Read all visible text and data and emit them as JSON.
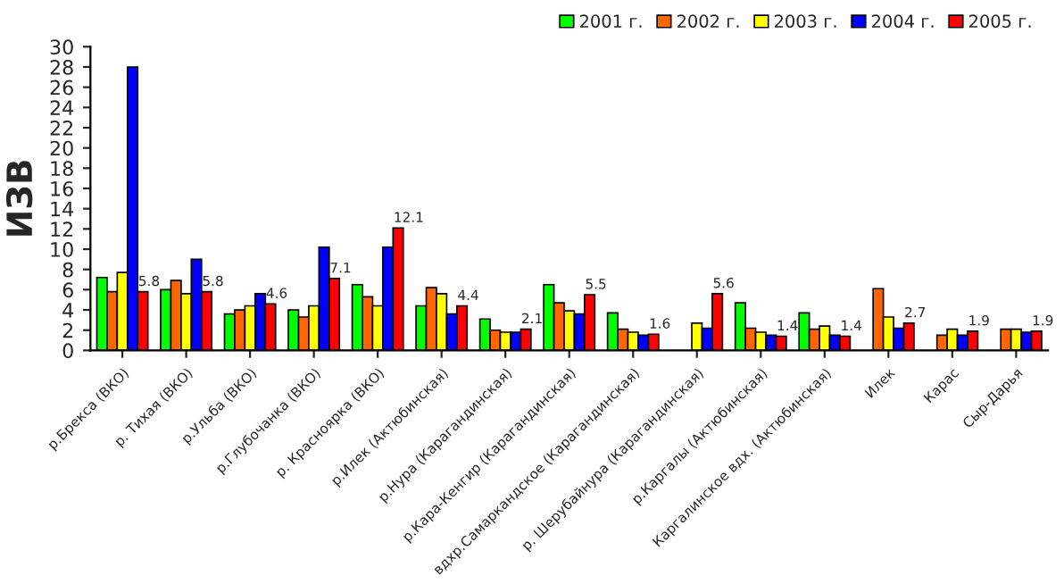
{
  "chart_data": {
    "type": "bar",
    "ylabel": "ИЗВ",
    "categories": [
      "р.Брекса (ВКО)",
      "р. Тихая (ВКО)",
      "р.Ульба (ВКО)",
      "р.Глубочанка (ВКО)",
      "р. Красноярка (ВКО)",
      "р.Илек (Актюбинская)",
      "р.Нура (Карагандинская)",
      "р.Кара-Кенгир (Карагандинская)",
      "вдхр.Самаркандское (Карагандинская)",
      "р. Шерубайнура (Карагандинская)",
      "р.Каргалы (Актюбинская)",
      "Каргалинское вдх. (Актюбинская)",
      "Илек",
      "Карас",
      "Сыр-Дарья"
    ],
    "series": [
      {
        "name": "2001 г.",
        "color": "#00ff00",
        "values": [
          7.2,
          6.0,
          3.6,
          4.0,
          6.5,
          4.4,
          3.1,
          6.5,
          3.7,
          null,
          4.7,
          3.7,
          null,
          null,
          null
        ]
      },
      {
        "name": "2002 г.",
        "color": "#ff6600",
        "values": [
          5.8,
          6.9,
          4.0,
          3.3,
          5.3,
          6.2,
          2.0,
          4.7,
          2.1,
          null,
          2.2,
          2.1,
          6.1,
          1.5,
          2.1
        ]
      },
      {
        "name": "2003 г.",
        "color": "#ffff00",
        "values": [
          7.7,
          5.6,
          4.4,
          4.4,
          4.4,
          5.6,
          1.8,
          3.9,
          1.8,
          2.7,
          1.8,
          2.4,
          3.3,
          2.1,
          2.1
        ]
      },
      {
        "name": "2004 г.",
        "color": "#0000ff",
        "values": [
          28.0,
          9.0,
          5.6,
          10.2,
          10.2,
          3.6,
          1.8,
          3.6,
          1.5,
          2.2,
          1.5,
          1.5,
          2.2,
          1.5,
          1.8
        ]
      },
      {
        "name": "2005 г.",
        "color": "#ff0000",
        "values": [
          5.8,
          5.8,
          4.6,
          7.1,
          12.1,
          4.4,
          2.1,
          5.5,
          1.6,
          5.6,
          1.4,
          1.4,
          2.7,
          1.9,
          1.9
        ],
        "value_labels": [
          "5.8",
          "5.8",
          "4.6",
          "7.1",
          "12.1",
          "4.4",
          "2.1",
          "5.5",
          "1.6",
          "5.6",
          "1.4",
          "1.4",
          "2.7",
          "1.9",
          "1.9"
        ]
      }
    ],
    "ylim": [
      0,
      30
    ],
    "yticks": [
      0,
      2,
      4,
      6,
      8,
      10,
      12,
      14,
      16,
      18,
      20,
      22,
      24,
      26,
      28,
      30
    ],
    "grid": false,
    "legend": "top right"
  }
}
